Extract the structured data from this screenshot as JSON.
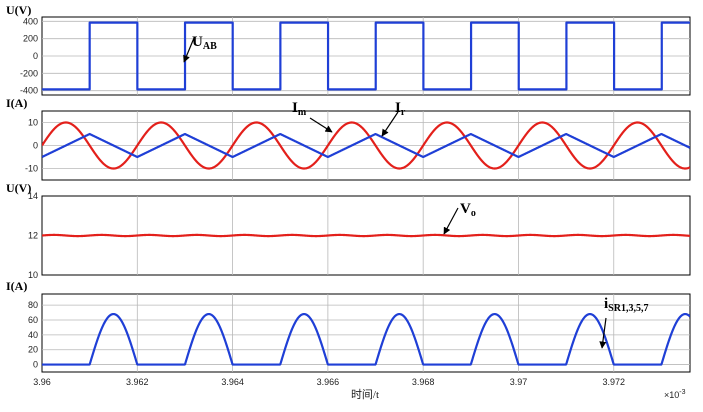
{
  "chart_data": [
    {
      "type": "line",
      "ylabel": "U(V)",
      "ylim": [
        -450,
        450
      ],
      "yticks": [
        "400",
        "200",
        "0",
        "-200",
        "-400"
      ],
      "ytick_values": [
        400,
        200,
        0,
        -200,
        -400
      ],
      "series": [
        {
          "name": "UAB",
          "color": "#1f3fd6",
          "kind": "square",
          "period": 0.002,
          "phase": 0.001,
          "high": 385,
          "low": -385,
          "x_range": [
            3.96,
            3.9736
          ]
        }
      ],
      "annotations": [
        {
          "main": "U",
          "sub": "AB",
          "target": "UAB"
        }
      ]
    },
    {
      "type": "line",
      "ylabel": "I(A)",
      "ylim": [
        -15,
        15
      ],
      "yticks": [
        "10",
        "0",
        "-10"
      ],
      "ytick_values": [
        10,
        0,
        -10
      ],
      "series": [
        {
          "name": "Ir",
          "color": "#e3201b",
          "kind": "sine",
          "amplitude": 10,
          "period": 0.002,
          "phase": 0.0,
          "x_range": [
            3.96,
            3.9736
          ]
        },
        {
          "name": "Im",
          "color": "#1f3fd6",
          "kind": "triangle",
          "amplitude": 5,
          "period": 0.002,
          "phase": 0.0,
          "x_range": [
            3.96,
            3.9736
          ]
        }
      ],
      "annotations": [
        {
          "main": "I",
          "sub": "m",
          "target": "Im"
        },
        {
          "main": "I",
          "sub": "r",
          "target": "Ir"
        }
      ]
    },
    {
      "type": "line",
      "ylabel": "U(V)",
      "ylim": [
        10,
        14
      ],
      "yticks": [
        "14",
        "12",
        "10"
      ],
      "ytick_values": [
        14,
        12,
        10
      ],
      "series": [
        {
          "name": "Vo",
          "color": "#e3201b",
          "kind": "ripple",
          "mean": 12,
          "ripple": 0.03,
          "period": 0.001,
          "x_range": [
            3.96,
            3.9736
          ]
        }
      ],
      "annotations": [
        {
          "main": "V",
          "sub": "o",
          "target": "Vo"
        }
      ]
    },
    {
      "type": "line",
      "ylabel": "I(A)",
      "ylim": [
        -10,
        95
      ],
      "yticks": [
        "80",
        "60",
        "40",
        "20",
        "0"
      ],
      "ytick_values": [
        80,
        60,
        40,
        20,
        0
      ],
      "series": [
        {
          "name": "iSR1,3,5,7",
          "color": "#1f3fd6",
          "kind": "halfsine",
          "amplitude": 68,
          "period": 0.002,
          "phase": 0.0,
          "x_range": [
            3.96,
            3.9736
          ]
        }
      ],
      "annotations": [
        {
          "main": "i",
          "sub": "SR1,3,5,7",
          "target": "iSR1,3,5,7"
        }
      ]
    }
  ],
  "xaxis": {
    "xlim": [
      3.96,
      3.9736
    ],
    "grid_step": 0.002,
    "ticks": [
      "3.96",
      "3.962",
      "3.964",
      "3.966",
      "3.968",
      "3.97",
      "3.972"
    ],
    "tick_values": [
      3.96,
      3.962,
      3.964,
      3.966,
      3.968,
      3.97,
      3.972
    ],
    "label": "时间/t",
    "exponent": "×10",
    "exponent_power": "-3"
  },
  "grid": true,
  "colors": {
    "blue": "#1f3fd6",
    "red": "#e3201b",
    "grid": "#b8b8b8"
  }
}
